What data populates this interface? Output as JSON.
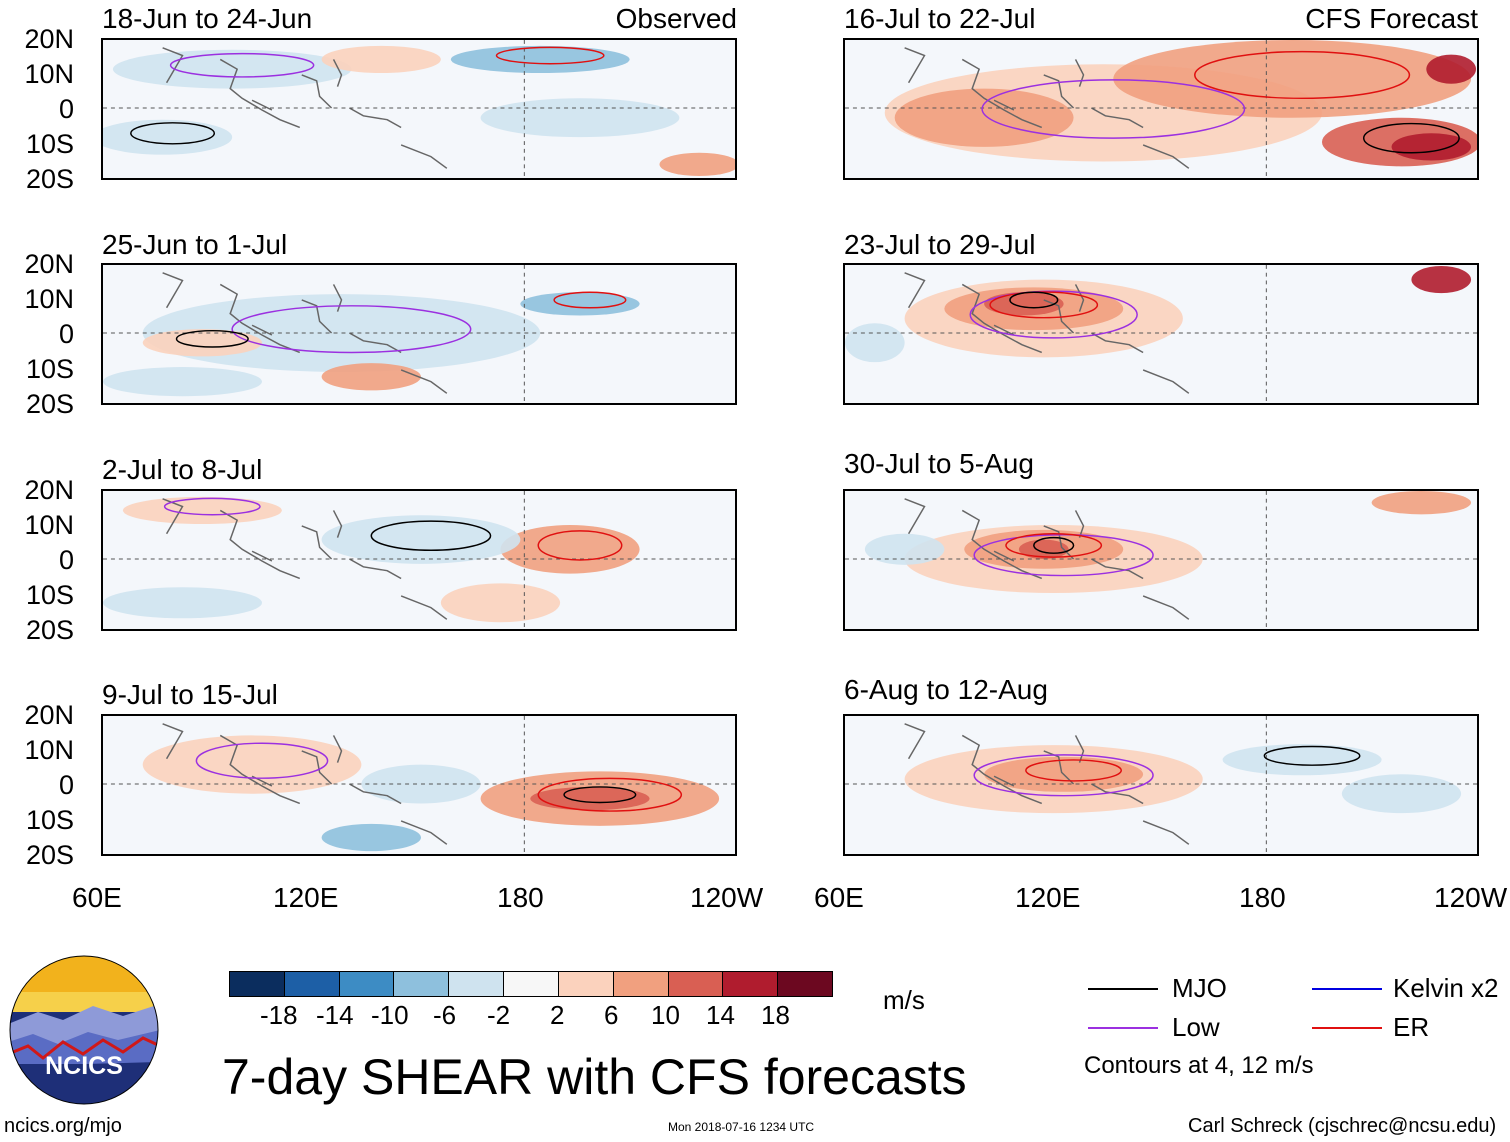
{
  "panels": [
    {
      "title": "18-Jun to 24-Jun",
      "label": "Observed"
    },
    {
      "title": "16-Jul to 22-Jul",
      "label": "CFS Forecast"
    },
    {
      "title": "25-Jun to 1-Jul",
      "label": ""
    },
    {
      "title": "23-Jul to 29-Jul",
      "label": ""
    },
    {
      "title": "2-Jul to 8-Jul",
      "label": ""
    },
    {
      "title": "30-Jul to 5-Aug",
      "label": ""
    },
    {
      "title": "9-Jul to 15-Jul",
      "label": ""
    },
    {
      "title": "6-Aug to 12-Aug",
      "label": ""
    }
  ],
  "lat_labels": [
    "20N",
    "10N",
    "0",
    "10S",
    "20S"
  ],
  "lon_labels": [
    "60E",
    "120E",
    "180",
    "120W"
  ],
  "colorbar": {
    "ticks": [
      "-18",
      "-14",
      "-10",
      "-6",
      "-2",
      "2",
      "6",
      "10",
      "14",
      "18"
    ],
    "colors": [
      "#0b2d5e",
      "#1d5fa6",
      "#3d8cc4",
      "#8ec0dd",
      "#cfe3ef",
      "#f7f7f7",
      "#fbd2bd",
      "#f1a07f",
      "#d95f53",
      "#b01c2e",
      "#6c0820"
    ],
    "units": "m/s"
  },
  "main_title": "7-day SHEAR with CFS forecasts",
  "legend": {
    "items": [
      {
        "label": "MJO",
        "color": "#000000"
      },
      {
        "label": "Kelvin x2",
        "color": "#0000e0"
      },
      {
        "label": "Low",
        "color": "#9b30e0"
      },
      {
        "label": "ER",
        "color": "#e01010"
      }
    ],
    "note": "Contours at 4, 12 m/s"
  },
  "logo": {
    "text": "NCICS"
  },
  "footer": {
    "left": "ncics.org/mjo",
    "center": "Mon 2018-07-16 1234 UTC",
    "right": "Carl Schreck (cjschrec@ncsu.edu)"
  }
}
